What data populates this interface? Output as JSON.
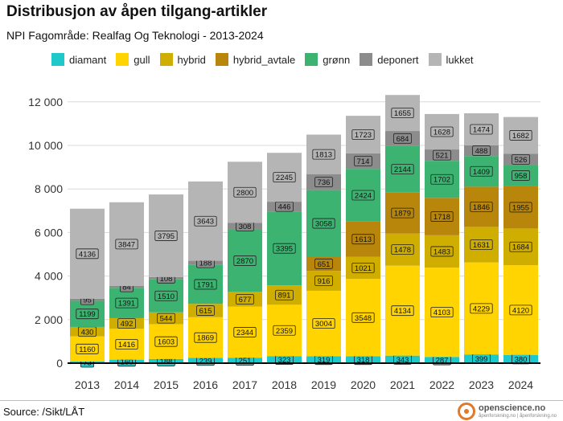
{
  "chart_data": {
    "type": "bar",
    "stacked": true,
    "title": "Distribusjon av åpen tilgang-artikler",
    "subtitle": "NPI Fagområde: Realfag Og Teknologi - 2013-2024",
    "categories": [
      "2013",
      "2014",
      "2015",
      "2016",
      "2017",
      "2018",
      "2019",
      "2020",
      "2021",
      "2022",
      "2023",
      "2024"
    ],
    "series": [
      {
        "name": "diamant",
        "color": "#1fc9c9",
        "values": [
          73,
          160,
          188,
          239,
          251,
          323,
          319,
          318,
          343,
          287,
          399,
          380
        ]
      },
      {
        "name": "gull",
        "color": "#ffd400",
        "values": [
          1160,
          1416,
          1603,
          1869,
          2344,
          2359,
          3004,
          3548,
          4134,
          4103,
          4229,
          4120
        ]
      },
      {
        "name": "hybrid",
        "color": "#d0ae00",
        "values": [
          430,
          492,
          544,
          615,
          677,
          891,
          916,
          1021,
          1478,
          1483,
          1631,
          1684
        ]
      },
      {
        "name": "hybrid_avtale",
        "color": "#b8860b",
        "values": [
          0,
          0,
          0,
          0,
          0,
          0,
          651,
          1613,
          1879,
          1718,
          1846,
          1955
        ]
      },
      {
        "name": "grønn",
        "color": "#3cb371",
        "values": [
          1199,
          1391,
          1510,
          1791,
          2870,
          3395,
          3058,
          2424,
          2144,
          1702,
          1409,
          958
        ]
      },
      {
        "name": "deponert",
        "color": "#8c8c8c",
        "values": [
          95,
          84,
          108,
          188,
          308,
          446,
          736,
          714,
          684,
          521,
          488,
          526
        ]
      },
      {
        "name": "lukket",
        "color": "#b5b5b5",
        "values": [
          4136,
          3847,
          3795,
          3643,
          2800,
          2245,
          1813,
          1723,
          1655,
          1628,
          1474,
          1682
        ]
      }
    ],
    "yticks": [
      "0",
      "2 000",
      "4 000",
      "6 000",
      "8 000",
      "10 000",
      "12 000"
    ],
    "ylim": [
      0,
      12800
    ],
    "xlabel": "",
    "ylabel": "",
    "grid": true,
    "legend_position": "top"
  },
  "footer": {
    "source": "Source: /Sikt/LÅT",
    "brand_name": "openscience.no",
    "brand_sub": "åpenforskning.no | åpenforskning.no"
  }
}
